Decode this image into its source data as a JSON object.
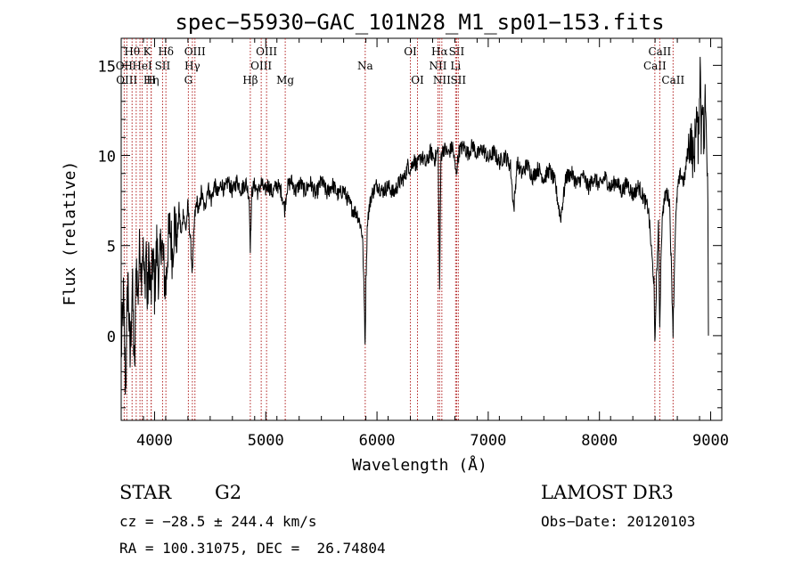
{
  "chart_data": {
    "type": "line",
    "title": "spec−55930−GAC_101N28_M1_sp01−153.fits",
    "xlabel": "Wavelength (Å)",
    "ylabel": "Flux (relative)",
    "xlim": [
      3700,
      9100
    ],
    "ylim": [
      -4.7,
      16.5
    ],
    "x_ticks": [
      4000,
      5000,
      6000,
      7000,
      8000,
      9000
    ],
    "x_tick_labels": [
      "4000",
      "5000",
      "6000",
      "7000",
      "8000",
      "9000"
    ],
    "y_ticks": [
      0,
      5,
      10,
      15
    ],
    "y_tick_labels": [
      "0",
      "5",
      "10",
      "15"
    ],
    "series": [
      {
        "name": "flux",
        "points": [
          [
            3700,
            -1.0
          ],
          [
            3720,
            2.0
          ],
          [
            3740,
            -3.0
          ],
          [
            3760,
            3.5
          ],
          [
            3780,
            -1.5
          ],
          [
            3800,
            3.0
          ],
          [
            3820,
            -2.5
          ],
          [
            3835,
            4.5
          ],
          [
            3850,
            2.0
          ],
          [
            3870,
            5.5
          ],
          [
            3880,
            3.5
          ],
          [
            3895,
            5.0
          ],
          [
            3910,
            2.5
          ],
          [
            3925,
            5.2
          ],
          [
            3935,
            1.5
          ],
          [
            3950,
            4.5
          ],
          [
            3968,
            2.0
          ],
          [
            3985,
            4.5
          ],
          [
            4000,
            2.5
          ],
          [
            4020,
            5.0
          ],
          [
            4040,
            3.0
          ],
          [
            4060,
            5.5
          ],
          [
            4080,
            4.0
          ],
          [
            4100,
            2.5
          ],
          [
            4120,
            5.0
          ],
          [
            4140,
            6.0
          ],
          [
            4160,
            4.5
          ],
          [
            4180,
            6.5
          ],
          [
            4200,
            5.0
          ],
          [
            4220,
            7.0
          ],
          [
            4240,
            5.5
          ],
          [
            4260,
            7.0
          ],
          [
            4280,
            5.8
          ],
          [
            4300,
            7.2
          ],
          [
            4320,
            5.5
          ],
          [
            4340,
            3.5
          ],
          [
            4360,
            6.5
          ],
          [
            4380,
            7.5
          ],
          [
            4400,
            6.8
          ],
          [
            4420,
            8.0
          ],
          [
            4450,
            7.0
          ],
          [
            4480,
            8.3
          ],
          [
            4510,
            7.5
          ],
          [
            4540,
            8.4
          ],
          [
            4570,
            7.8
          ],
          [
            4600,
            8.5
          ],
          [
            4630,
            8.0
          ],
          [
            4660,
            8.6
          ],
          [
            4700,
            8.0
          ],
          [
            4740,
            8.6
          ],
          [
            4780,
            8.1
          ],
          [
            4820,
            8.5
          ],
          [
            4850,
            7.8
          ],
          [
            4861,
            5.0
          ],
          [
            4875,
            8.0
          ],
          [
            4900,
            8.4
          ],
          [
            4930,
            7.9
          ],
          [
            4960,
            8.5
          ],
          [
            4990,
            8.0
          ],
          [
            5020,
            8.4
          ],
          [
            5060,
            7.9
          ],
          [
            5100,
            8.4
          ],
          [
            5140,
            8.0
          ],
          [
            5170,
            7.0
          ],
          [
            5190,
            8.2
          ],
          [
            5230,
            8.6
          ],
          [
            5270,
            8.0
          ],
          [
            5310,
            8.5
          ],
          [
            5350,
            8.0
          ],
          [
            5400,
            8.5
          ],
          [
            5450,
            7.8
          ],
          [
            5500,
            8.6
          ],
          [
            5550,
            7.9
          ],
          [
            5600,
            8.4
          ],
          [
            5650,
            7.8
          ],
          [
            5700,
            8.1
          ],
          [
            5740,
            7.5
          ],
          [
            5780,
            7.0
          ],
          [
            5820,
            6.8
          ],
          [
            5850,
            6.2
          ],
          [
            5870,
            5.5
          ],
          [
            5885,
            2.0
          ],
          [
            5893,
            -0.5
          ],
          [
            5900,
            3.0
          ],
          [
            5915,
            6.5
          ],
          [
            5950,
            7.8
          ],
          [
            6000,
            8.4
          ],
          [
            6050,
            8.0
          ],
          [
            6100,
            8.3
          ],
          [
            6150,
            7.9
          ],
          [
            6200,
            8.5
          ],
          [
            6250,
            8.8
          ],
          [
            6280,
            9.5
          ],
          [
            6300,
            9.2
          ],
          [
            6330,
            9.8
          ],
          [
            6360,
            9.4
          ],
          [
            6400,
            10.0
          ],
          [
            6440,
            9.5
          ],
          [
            6480,
            10.2
          ],
          [
            6520,
            9.8
          ],
          [
            6550,
            10.3
          ],
          [
            6563,
            2.6
          ],
          [
            6575,
            10.0
          ],
          [
            6600,
            10.4
          ],
          [
            6640,
            10.1
          ],
          [
            6680,
            10.5
          ],
          [
            6710,
            9.0
          ],
          [
            6740,
            10.3
          ],
          [
            6780,
            10.5
          ],
          [
            6820,
            10.1
          ],
          [
            6860,
            10.6
          ],
          [
            6900,
            10.0
          ],
          [
            6950,
            10.4
          ],
          [
            7000,
            9.8
          ],
          [
            7050,
            10.2
          ],
          [
            7100,
            9.6
          ],
          [
            7150,
            10.0
          ],
          [
            7200,
            9.4
          ],
          [
            7230,
            7.0
          ],
          [
            7260,
            9.6
          ],
          [
            7300,
            9.0
          ],
          [
            7350,
            9.5
          ],
          [
            7400,
            8.8
          ],
          [
            7450,
            9.3
          ],
          [
            7500,
            8.7
          ],
          [
            7550,
            9.2
          ],
          [
            7600,
            8.5
          ],
          [
            7650,
            6.5
          ],
          [
            7700,
            8.8
          ],
          [
            7750,
            9.0
          ],
          [
            7800,
            8.4
          ],
          [
            7850,
            8.9
          ],
          [
            7900,
            8.2
          ],
          [
            7950,
            8.8
          ],
          [
            8000,
            8.3
          ],
          [
            8050,
            8.8
          ],
          [
            8100,
            8.2
          ],
          [
            8150,
            8.6
          ],
          [
            8200,
            8.0
          ],
          [
            8250,
            8.5
          ],
          [
            8300,
            7.8
          ],
          [
            8350,
            8.3
          ],
          [
            8400,
            7.6
          ],
          [
            8440,
            7.0
          ],
          [
            8470,
            4.5
          ],
          [
            8490,
            3.0
          ],
          [
            8498,
            -0.7
          ],
          [
            8510,
            2.5
          ],
          [
            8530,
            6.0
          ],
          [
            8542,
            0.5
          ],
          [
            8555,
            5.0
          ],
          [
            8570,
            7.0
          ],
          [
            8600,
            8.0
          ],
          [
            8630,
            7.5
          ],
          [
            8662,
            0.3
          ],
          [
            8680,
            5.5
          ],
          [
            8700,
            8.0
          ],
          [
            8730,
            9.0
          ],
          [
            8760,
            8.5
          ],
          [
            8790,
            10.0
          ],
          [
            8820,
            11.0
          ],
          [
            8850,
            9.5
          ],
          [
            8870,
            12.5
          ],
          [
            8890,
            10.5
          ],
          [
            8905,
            15.5
          ],
          [
            8915,
            11.0
          ],
          [
            8925,
            14.0
          ],
          [
            8940,
            10.0
          ],
          [
            8950,
            13.0
          ],
          [
            8965,
            11.0
          ],
          [
            8975,
            8.0
          ],
          [
            8980,
            0.0
          ]
        ]
      }
    ],
    "lines_color": "#b22222",
    "line_markers": [
      {
        "w": 3727,
        "label": "OII",
        "row": 1
      },
      {
        "w": 3750,
        "label": "OIII",
        "row": 2
      },
      {
        "w": 3798,
        "label": "Hθ",
        "row": 0
      },
      {
        "w": 3835,
        "label": "",
        "row": 0
      },
      {
        "w": 3869,
        "label": "",
        "row": 0
      },
      {
        "w": 3889,
        "label": "HeI",
        "row": 1
      },
      {
        "w": 3933,
        "label": "K",
        "row": 0
      },
      {
        "w": 3970,
        "label": "Hη",
        "row": 2
      },
      {
        "w": 3969,
        "label": "H",
        "row": 2
      },
      {
        "w": 4072,
        "label": "SII",
        "row": 1
      },
      {
        "w": 4102,
        "label": "Hδ",
        "row": 0
      },
      {
        "w": 4304,
        "label": "G",
        "row": 2
      },
      {
        "w": 4340,
        "label": "Hγ",
        "row": 1
      },
      {
        "w": 4363,
        "label": "OIII",
        "row": 0
      },
      {
        "w": 4861,
        "label": "Hβ",
        "row": 2
      },
      {
        "w": 4959,
        "label": "OIII",
        "row": 1
      },
      {
        "w": 5007,
        "label": "OIII",
        "row": 0
      },
      {
        "w": 5175,
        "label": "Mg",
        "row": 2
      },
      {
        "w": 5894,
        "label": "Na",
        "row": 1
      },
      {
        "w": 6300,
        "label": "OI",
        "row": 0
      },
      {
        "w": 6364,
        "label": "OI",
        "row": 2
      },
      {
        "w": 6548,
        "label": "NII",
        "row": 1
      },
      {
        "w": 6563,
        "label": "Hα",
        "row": 0
      },
      {
        "w": 6583,
        "label": "NII",
        "row": 2
      },
      {
        "w": 6707,
        "label": "Li",
        "row": 1
      },
      {
        "w": 6716,
        "label": "SII",
        "row": 0
      },
      {
        "w": 6731,
        "label": "SII",
        "row": 2
      },
      {
        "w": 8498,
        "label": "CaII",
        "row": 1
      },
      {
        "w": 8542,
        "label": "CaII",
        "row": 0
      },
      {
        "w": 8662,
        "label": "CaII",
        "row": 2
      }
    ]
  },
  "info": {
    "class": "STAR",
    "subclass": "G2",
    "survey": "LAMOST DR3",
    "cz_line": "cz = −28.5 ± 244.4 km/s",
    "obs_date": "Obs−Date: 20120103",
    "coords": "RA = 100.31075, DEC =  26.74804"
  }
}
